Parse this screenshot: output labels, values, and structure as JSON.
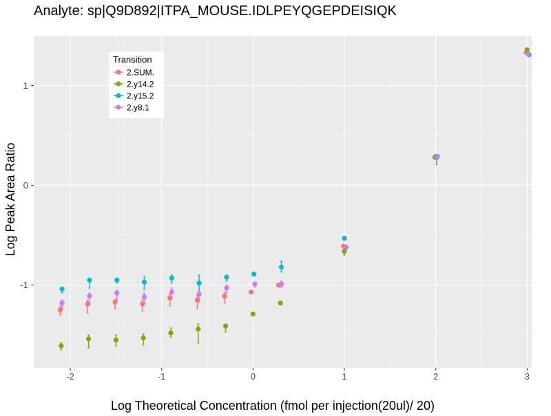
{
  "chart_data": {
    "type": "scatter",
    "title": "Analyte: sp|Q9D892|ITPA_MOUSE.IDLPEYQGEPDEISIQK",
    "xlabel": "Log Theoretical Concentration (fmol per injection(20ul)/ 20)",
    "ylabel": "Log Peak Area Ratio",
    "xlim": [
      -2.4,
      3.05
    ],
    "ylim": [
      -1.83,
      1.5
    ],
    "x_ticks": [
      -2,
      -1,
      0,
      1,
      2,
      3
    ],
    "x_tick_labels": [
      "-2",
      "-1",
      "0",
      "1",
      "2",
      "3"
    ],
    "y_ticks": [
      -1,
      0,
      1
    ],
    "y_tick_labels": [
      "-1",
      "0",
      "1"
    ],
    "grid": true,
    "legend": {
      "title": "Transition",
      "position": "top-left"
    },
    "colors": {
      "panel": "#EBEBEB",
      "grid_major": "#FFFFFF",
      "text": "#000000",
      "axis_text": "#4D4D4D"
    },
    "series": [
      {
        "name": "2.SUM.",
        "color": "#F8766D",
        "points": [
          {
            "x": -2.11,
            "y": -1.25,
            "lo": -1.3,
            "hi": -1.21
          },
          {
            "x": -1.81,
            "y": -1.19,
            "lo": -1.28,
            "hi": -1.15
          },
          {
            "x": -1.51,
            "y": -1.17,
            "lo": -1.24,
            "hi": -1.14
          },
          {
            "x": -1.21,
            "y": -1.19,
            "lo": -1.26,
            "hi": -1.15
          },
          {
            "x": -0.91,
            "y": -1.13,
            "lo": -1.21,
            "hi": -1.09
          },
          {
            "x": -0.61,
            "y": -1.15,
            "lo": -1.24,
            "hi": -1.1
          },
          {
            "x": -0.31,
            "y": -1.11,
            "lo": -1.18,
            "hi": -1.07
          },
          {
            "x": -0.02,
            "y": -1.07,
            "lo": -1.08,
            "hi": -1.06
          },
          {
            "x": 0.28,
            "y": -1.0,
            "lo": -1.02,
            "hi": -0.98
          },
          {
            "x": 0.99,
            "y": -0.61,
            "lo": -0.63,
            "hi": -0.6
          },
          {
            "x": 1.99,
            "y": 0.28,
            "lo": 0.27,
            "hi": 0.29
          },
          {
            "x": 2.99,
            "y": 1.33,
            "lo": 1.32,
            "hi": 1.34
          }
        ]
      },
      {
        "name": "2.y14.2",
        "color": "#7CAE00",
        "points": [
          {
            "x": -2.1,
            "y": -1.61,
            "lo": -1.65,
            "hi": -1.58
          },
          {
            "x": -1.8,
            "y": -1.54,
            "lo": -1.63,
            "hi": -1.5
          },
          {
            "x": -1.5,
            "y": -1.55,
            "lo": -1.61,
            "hi": -1.5
          },
          {
            "x": -1.2,
            "y": -1.53,
            "lo": -1.6,
            "hi": -1.49
          },
          {
            "x": -0.9,
            "y": -1.48,
            "lo": -1.52,
            "hi": -1.43
          },
          {
            "x": -0.6,
            "y": -1.44,
            "lo": -1.58,
            "hi": -1.39
          },
          {
            "x": -0.3,
            "y": -1.41,
            "lo": -1.47,
            "hi": -1.39
          },
          {
            "x": 0.0,
            "y": -1.29,
            "lo": -1.29,
            "hi": -1.29
          },
          {
            "x": 0.3,
            "y": -1.18,
            "lo": -1.18,
            "hi": -1.18
          },
          {
            "x": 1.0,
            "y": -0.66,
            "lo": -0.7,
            "hi": -0.63
          },
          {
            "x": 2.0,
            "y": 0.29,
            "lo": 0.28,
            "hi": 0.3
          },
          {
            "x": 3.0,
            "y": 1.36,
            "lo": 1.35,
            "hi": 1.37
          }
        ]
      },
      {
        "name": "2.y15.2",
        "color": "#00BFC4",
        "points": [
          {
            "x": -2.09,
            "y": -1.04,
            "lo": -1.08,
            "hi": -1.02
          },
          {
            "x": -1.79,
            "y": -0.95,
            "lo": -1.03,
            "hi": -0.93
          },
          {
            "x": -1.49,
            "y": -0.95,
            "lo": -0.98,
            "hi": -0.93
          },
          {
            "x": -1.19,
            "y": -0.97,
            "lo": -1.04,
            "hi": -0.91
          },
          {
            "x": -0.89,
            "y": -0.93,
            "lo": -0.98,
            "hi": -0.9
          },
          {
            "x": -0.59,
            "y": -0.98,
            "lo": -1.05,
            "hi": -0.9
          },
          {
            "x": -0.29,
            "y": -0.92,
            "lo": -0.96,
            "hi": -0.9
          },
          {
            "x": 0.01,
            "y": -0.89,
            "lo": -0.9,
            "hi": -0.88
          },
          {
            "x": 0.31,
            "y": -0.82,
            "lo": -0.87,
            "hi": -0.76
          },
          {
            "x": 1.0,
            "y": -0.53,
            "lo": -0.54,
            "hi": -0.52
          },
          {
            "x": 2.01,
            "y": 0.28,
            "lo": 0.21,
            "hi": 0.3
          },
          {
            "x": 3.02,
            "y": 1.31,
            "lo": 1.3,
            "hi": 1.32
          }
        ]
      },
      {
        "name": "2.y8.1",
        "color": "#C77CFF",
        "points": [
          {
            "x": -2.09,
            "y": -1.18,
            "lo": -1.24,
            "hi": -1.15
          },
          {
            "x": -1.79,
            "y": -1.11,
            "lo": -1.19,
            "hi": -1.08
          },
          {
            "x": -1.49,
            "y": -1.08,
            "lo": -1.15,
            "hi": -1.05
          },
          {
            "x": -1.19,
            "y": -1.12,
            "lo": -1.18,
            "hi": -1.08
          },
          {
            "x": -0.89,
            "y": -1.07,
            "lo": -1.13,
            "hi": -1.03
          },
          {
            "x": -0.59,
            "y": -1.09,
            "lo": -1.17,
            "hi": -1.05
          },
          {
            "x": -0.29,
            "y": -1.03,
            "lo": -1.08,
            "hi": -1.0
          },
          {
            "x": 0.02,
            "y": -0.99,
            "lo": -1.02,
            "hi": -0.97
          },
          {
            "x": 0.31,
            "y": -0.99,
            "lo": -1.02,
            "hi": -0.96
          },
          {
            "x": 1.02,
            "y": -0.62,
            "lo": -0.63,
            "hi": -0.61
          },
          {
            "x": 2.02,
            "y": 0.29,
            "lo": 0.28,
            "hi": 0.3
          },
          {
            "x": 3.01,
            "y": 1.32,
            "lo": 1.31,
            "hi": 1.33
          }
        ]
      }
    ]
  }
}
